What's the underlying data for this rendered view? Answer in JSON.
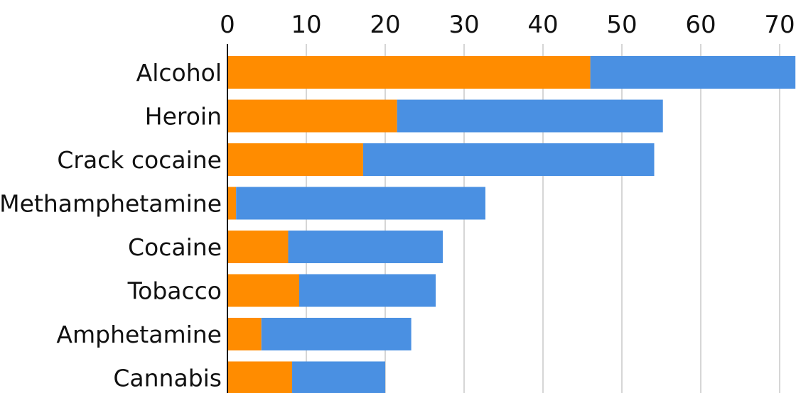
{
  "chart_data": {
    "type": "bar",
    "orientation": "horizontal",
    "stacked": true,
    "title": "",
    "xlabel": "",
    "ylabel": "",
    "xlim": [
      0,
      72
    ],
    "x_ticks": [
      0,
      10,
      20,
      30,
      40,
      50,
      60,
      70
    ],
    "x_axis_position": "top",
    "grid": true,
    "categories": [
      "Alcohol",
      "Heroin",
      "Crack cocaine",
      "Methamphetamine",
      "Cocaine",
      "Tobacco",
      "Amphetamine",
      "Cannabis"
    ],
    "series": [
      {
        "values": [
          46,
          21.5,
          17.2,
          1.1,
          7.7,
          9.1,
          4.3,
          8.2
        ],
        "color": "#FF8C00"
      },
      {
        "values": [
          26,
          33.7,
          36.9,
          31.6,
          19.6,
          17.3,
          19,
          11.8
        ],
        "color": "#4A90E2"
      }
    ]
  },
  "colors": {
    "grid": "#c8c8c8",
    "axis": "#111111",
    "text": "#111111"
  }
}
